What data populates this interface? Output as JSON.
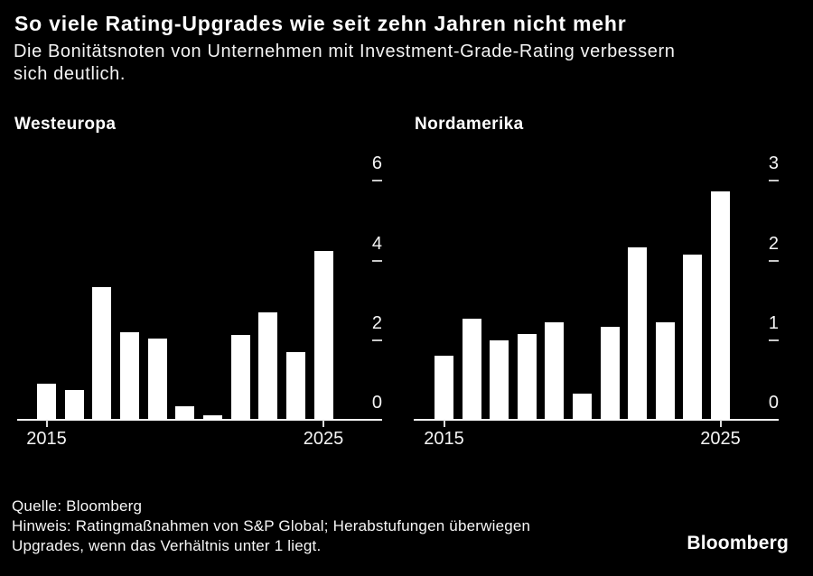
{
  "header": {
    "title": "So viele Rating-Upgrades wie seit zehn Jahren nicht mehr",
    "subtitle_lines": [
      "Die Bonitätsnoten von Unternehmen mit Investment-Grade-Rating verbessern",
      "sich deutlich."
    ]
  },
  "chart_data": [
    {
      "type": "bar",
      "title": "Westeuropa",
      "categories": [
        2015,
        2016,
        2017,
        2018,
        2019,
        2020,
        2021,
        2022,
        2023,
        2024,
        2025
      ],
      "values": [
        0.9,
        0.74,
        3.33,
        2.2,
        2.05,
        0.34,
        0.12,
        2.14,
        2.7,
        1.71,
        4.25
      ],
      "ylim": [
        0,
        6
      ],
      "yticks": [
        0,
        2,
        4,
        6
      ],
      "xticks_shown": [
        "2015",
        "2025"
      ],
      "bar_color": "#ffffff",
      "axis_side": "right",
      "grid": false
    },
    {
      "type": "bar",
      "title": "Nordamerika",
      "categories": [
        2015,
        2016,
        2017,
        2018,
        2019,
        2020,
        2021,
        2022,
        2023,
        2024,
        2025
      ],
      "values": [
        0.8,
        1.27,
        1.0,
        1.08,
        1.23,
        0.33,
        1.17,
        2.16,
        1.22,
        2.08,
        2.87
      ],
      "ylim": [
        0,
        3
      ],
      "yticks": [
        0,
        1,
        2,
        3
      ],
      "xticks_shown": [
        "2015",
        "2025"
      ],
      "bar_color": "#ffffff",
      "axis_side": "right",
      "grid": false
    }
  ],
  "footer": {
    "source": "Quelle: Bloomberg",
    "note_lines": [
      "Hinweis: Ratingmaßnahmen von S&P Global; Herabstufungen überwiegen",
      "Upgrades, wenn das Verhältnis unter 1 liegt."
    ],
    "logo": "Bloomberg"
  },
  "colors": {
    "background": "#000000",
    "text": "#ffffff",
    "bar": "#ffffff",
    "axis": "#f2f2f2",
    "tick_dash": "#c9c9c9"
  }
}
